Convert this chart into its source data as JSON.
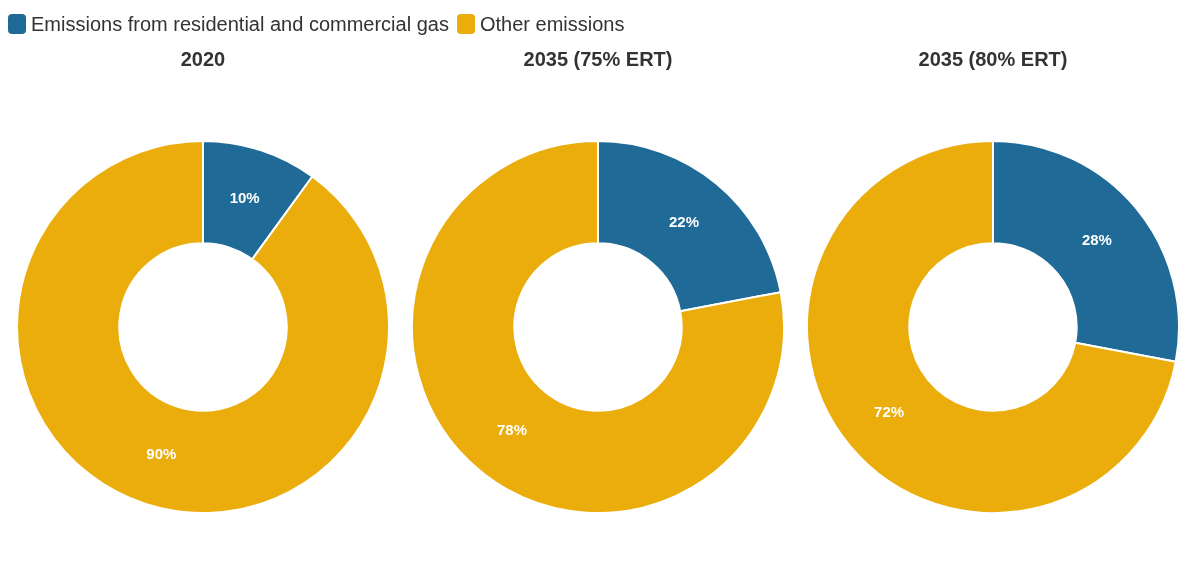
{
  "chart_data": [
    {
      "type": "donut",
      "title": "2020",
      "categories": [
        "Emissions from residential and commercial gas",
        "Other emissions"
      ],
      "values": [
        10,
        90
      ],
      "colors": [
        "#1f6a96",
        "#eaad0c"
      ],
      "value_labels": [
        "10%",
        "90%"
      ],
      "legend": "top"
    },
    {
      "type": "donut",
      "title": "2035 (75% ERT)",
      "categories": [
        null,
        null
      ],
      "values": [
        22,
        78
      ],
      "colors": [
        "#1f6a96",
        "#eaad0c"
      ],
      "value_labels": [
        "22%",
        "78%"
      ]
    },
    {
      "type": "donut",
      "title": "2035 (80% ERT)",
      "categories": [
        null,
        null
      ],
      "values": [
        28,
        72
      ],
      "colors": [
        "#1f6a96",
        "#eaad0c"
      ],
      "value_labels": [
        "28%",
        "72%"
      ]
    }
  ]
}
